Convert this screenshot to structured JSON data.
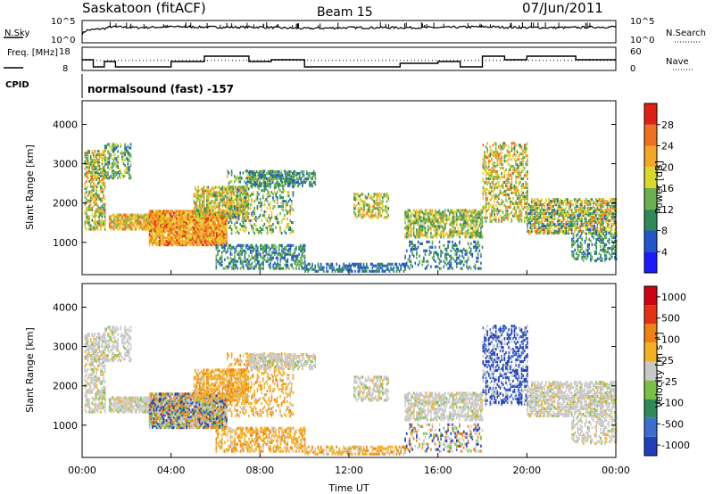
{
  "header": {
    "station": "Saskatoon (fitACF)",
    "beam": "Beam 15",
    "date": "07/Jun/2011"
  },
  "chart_data": [
    {
      "type": "line",
      "panel": "noise",
      "left_label": "N.Sky",
      "right_label": "N.Search",
      "left_ticks": [
        "10^5",
        "10^0"
      ],
      "right_ticks": [
        "10^5",
        "10^0"
      ],
      "series": [
        {
          "name": "N.Sky",
          "style": "solid",
          "x": [
            0,
            0.2,
            1,
            1.3,
            2.5,
            4,
            6,
            8,
            10,
            12,
            14,
            16,
            18,
            20,
            22,
            24
          ],
          "y": [
            2,
            2.8,
            3.2,
            3.6,
            3.4,
            3.6,
            3.5,
            3.5,
            3.2,
            3.4,
            3.4,
            3.4,
            3.6,
            3.4,
            3.4,
            3.6
          ]
        }
      ]
    },
    {
      "type": "line",
      "panel": "frequency",
      "left_label": "Freq. [MHz]",
      "right_label": "Nave",
      "left_ticks": [
        "18",
        "8"
      ],
      "right_ticks": [
        "60",
        "0"
      ],
      "series": [
        {
          "name": "Freq.",
          "style": "solid",
          "steps_x": [
            0,
            0.5,
            1,
            1.5,
            3,
            4,
            5.5,
            7.5,
            8.5,
            10,
            12,
            14.3,
            16,
            17,
            18,
            19,
            20,
            22.2,
            24
          ],
          "steps_y": [
            12,
            8,
            11,
            8,
            8,
            11,
            14,
            11,
            12,
            8,
            8,
            10,
            11,
            8,
            14,
            12,
            14,
            12,
            12
          ]
        },
        {
          "name": "Nave",
          "style": "dotted",
          "x": [
            0,
            24
          ],
          "y": [
            26,
            26
          ]
        }
      ]
    },
    {
      "type": "text",
      "panel": "cpid",
      "label": "CPID",
      "value": "normalsound (fast) -157"
    },
    {
      "type": "heatmap",
      "panel": "power",
      "x_range": [
        0,
        24
      ],
      "ylim": [
        180,
        4600
      ],
      "ylabel": "Slant Range [km]",
      "yticks": [
        1000,
        2000,
        3000,
        4000
      ],
      "colorbar": {
        "label": "Power [dB]",
        "ticks": [
          "4",
          "8",
          "12",
          "16",
          "20",
          "24",
          "28"
        ],
        "colors": [
          "#1a1aff",
          "#2255cc",
          "#2e8b57",
          "#6ab04c",
          "#d9d92a",
          "#f5a623",
          "#f07020",
          "#e02010"
        ]
      }
    },
    {
      "type": "heatmap",
      "panel": "velocity",
      "x_range": [
        0,
        24
      ],
      "ylim": [
        180,
        4600
      ],
      "ylabel": "Slant Range [km]",
      "yticks": [
        1000,
        2000,
        3000,
        4000
      ],
      "xlabel": "Time UT",
      "xticks": [
        "00:00",
        "04:00",
        "08:00",
        "12:00",
        "16:00",
        "20:00",
        "00:00"
      ],
      "colorbar": {
        "label": "Velocity [m s⁻¹]",
        "ticks": [
          "1000",
          "500",
          "100",
          "25",
          "-25",
          "-100",
          "-500",
          "-1000"
        ],
        "colors": [
          "#1f3fbf",
          "#3a6fd0",
          "#2e8b57",
          "#7ac143",
          "#c8c8c8",
          "#f5b020",
          "#f08010",
          "#e83010",
          "#d00010"
        ]
      }
    }
  ]
}
